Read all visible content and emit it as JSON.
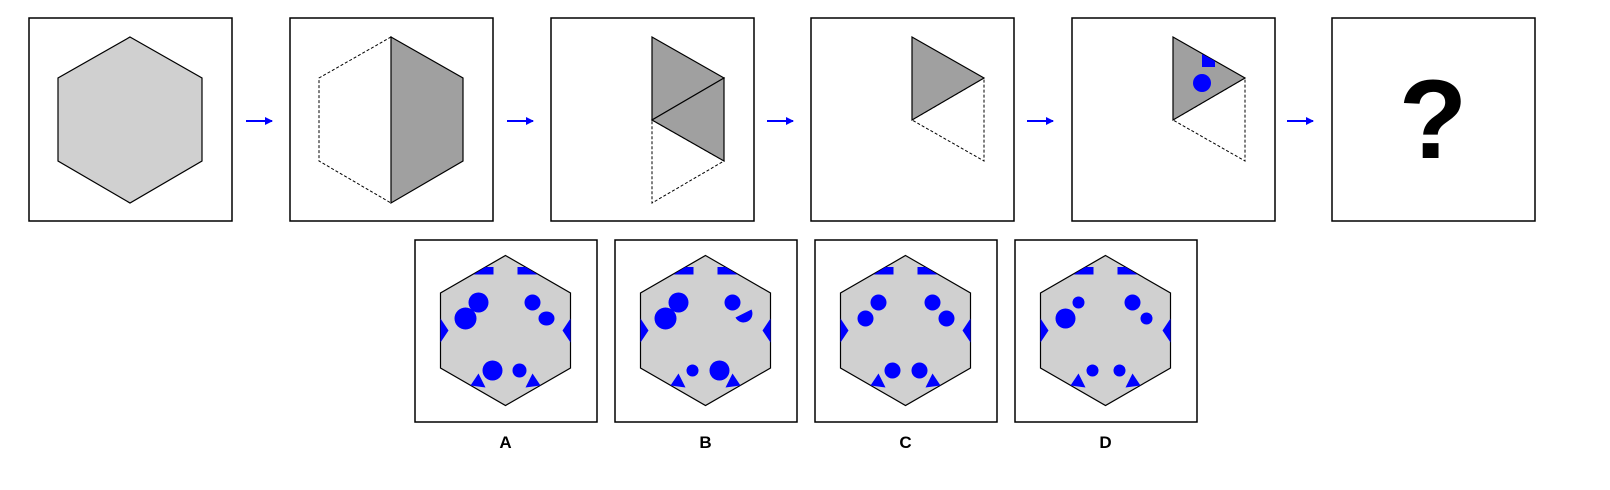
{
  "colors": {
    "accent": "#0000ff",
    "light_fill": "#d0d0d0",
    "dark_fill": "#a0a0a0",
    "stroke": "#000000"
  },
  "sequence": {
    "question_mark": "?"
  },
  "options": [
    {
      "label": "A"
    },
    {
      "label": "B"
    },
    {
      "label": "C"
    },
    {
      "label": "D"
    }
  ]
}
